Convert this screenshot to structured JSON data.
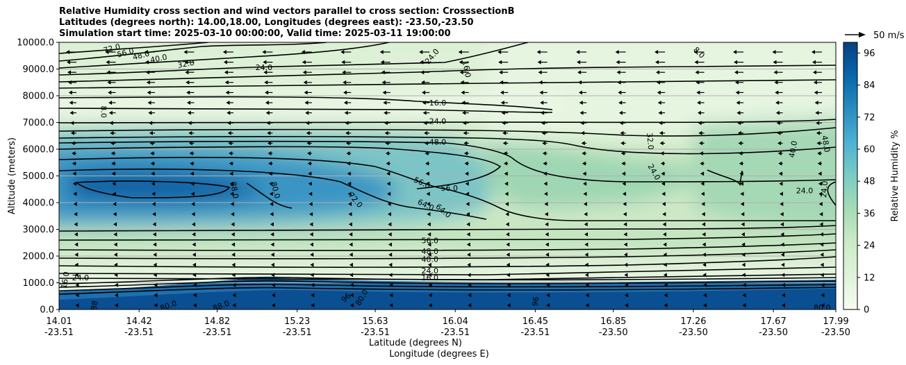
{
  "chart_data": {
    "type": "heatmap",
    "title_lines": [
      "Relative Humidity cross section and wind vectors parallel to cross section: CrosssectionB",
      "Latitudes (degrees north): 14.00,18.00, Longitudes (degrees east): -23.50,-23.50",
      "Simulation start time: 2025-03-10 00:00:00, Valid time: 2025-03-11 19:00:00"
    ],
    "ylabel": "Altitude (meters)",
    "xlabel_lat": "Latitude (degrees N)",
    "xlabel_lon": "Longitude (degrees E)",
    "ylim": [
      0,
      10000
    ],
    "yticks": [
      "0.0",
      "1000.0",
      "2000.0",
      "3000.0",
      "4000.0",
      "5000.0",
      "6000.0",
      "7000.0",
      "8000.0",
      "9000.0",
      "10000.0"
    ],
    "xticks_lat": [
      "14.01",
      "14.42",
      "14.82",
      "15.23",
      "15.63",
      "16.04",
      "16.45",
      "16.85",
      "17.26",
      "17.67",
      "17.99"
    ],
    "xticks_lon": [
      "-23.51",
      "-23.51",
      "-23.51",
      "-23.51",
      "-23.51",
      "-23.51",
      "-23.51",
      "-23.50",
      "-23.50",
      "-23.50",
      "-23.50"
    ],
    "xtick_positions": [
      14.01,
      14.42,
      14.82,
      15.23,
      15.63,
      16.04,
      16.45,
      16.85,
      17.26,
      17.67,
      17.99
    ],
    "xlim": [
      14.01,
      17.99
    ],
    "colorbar": {
      "label": "Relative Humidity %",
      "ticks": [
        "0",
        "12",
        "24",
        "36",
        "48",
        "60",
        "72",
        "84",
        "96"
      ],
      "range": [
        0,
        100
      ]
    },
    "quiver_key": "50 m/s",
    "grid": "horizontal",
    "contour_labels": [
      {
        "text": "72.0",
        "lat": 14.28,
        "z": 9780,
        "rot": -15
      },
      {
        "text": "56.0",
        "lat": 14.35,
        "z": 9620,
        "rot": -15
      },
      {
        "text": "48.0",
        "lat": 14.43,
        "z": 9520,
        "rot": -15
      },
      {
        "text": "40.0",
        "lat": 14.52,
        "z": 9400,
        "rot": -12
      },
      {
        "text": "32.0",
        "lat": 14.66,
        "z": 9200,
        "rot": -10
      },
      {
        "text": "24.0",
        "lat": 15.06,
        "z": 9060,
        "rot": 0
      },
      {
        "text": "24.0",
        "lat": 15.92,
        "z": 9480,
        "rot": -50
      },
      {
        "text": "16.0",
        "lat": 16.1,
        "z": 9000,
        "rot": 80
      },
      {
        "text": "8.0",
        "lat": 17.29,
        "z": 9620,
        "rot": 45
      },
      {
        "text": "8.0",
        "lat": 14.24,
        "z": 7400,
        "rot": 90
      },
      {
        "text": "16.0",
        "lat": 15.95,
        "z": 7740,
        "rot": 0
      },
      {
        "text": "24.0",
        "lat": 15.95,
        "z": 7050,
        "rot": 0
      },
      {
        "text": "48.0",
        "lat": 15.95,
        "z": 6270,
        "rot": 0
      },
      {
        "text": "32.0",
        "lat": 17.04,
        "z": 6300,
        "rot": 85
      },
      {
        "text": "40.0",
        "lat": 17.77,
        "z": 6000,
        "rot": -80
      },
      {
        "text": "48.0",
        "lat": 17.94,
        "z": 6200,
        "rot": 80
      },
      {
        "text": "24.0",
        "lat": 17.06,
        "z": 5150,
        "rot": 60
      },
      {
        "text": "24.0",
        "lat": 17.83,
        "z": 4460,
        "rot": 0
      },
      {
        "text": "24.0",
        "lat": 17.93,
        "z": 4500,
        "rot": -85
      },
      {
        "text": "88.0",
        "lat": 14.91,
        "z": 4470,
        "rot": 80
      },
      {
        "text": "80.0",
        "lat": 15.12,
        "z": 4470,
        "rot": 75
      },
      {
        "text": "72.0",
        "lat": 15.53,
        "z": 4100,
        "rot": 50
      },
      {
        "text": "56.0",
        "lat": 15.87,
        "z": 4750,
        "rot": 25
      },
      {
        "text": "56.0",
        "lat": 16.01,
        "z": 4550,
        "rot": 0
      },
      {
        "text": "64.0",
        "lat": 15.89,
        "z": 3920,
        "rot": 25
      },
      {
        "text": "64.0",
        "lat": 15.98,
        "z": 3700,
        "rot": 40
      },
      {
        "text": "56.0",
        "lat": 15.91,
        "z": 2580,
        "rot": 0
      },
      {
        "text": "48.0",
        "lat": 15.91,
        "z": 2180,
        "rot": 0
      },
      {
        "text": "40.0",
        "lat": 15.91,
        "z": 1880,
        "rot": 0
      },
      {
        "text": "24.0",
        "lat": 15.91,
        "z": 1450,
        "rot": 0
      },
      {
        "text": "16.0",
        "lat": 15.91,
        "z": 1200,
        "rot": 0
      },
      {
        "text": "24.0",
        "lat": 14.12,
        "z": 1200,
        "rot": 0
      },
      {
        "text": "16.0",
        "lat": 14.04,
        "z": 1100,
        "rot": -80
      },
      {
        "text": "80.0",
        "lat": 14.57,
        "z": 150,
        "rot": -20
      },
      {
        "text": "88.0",
        "lat": 14.84,
        "z": 150,
        "rot": -20
      },
      {
        "text": "96",
        "lat": 15.48,
        "z": 450,
        "rot": -45
      },
      {
        "text": "80.0",
        "lat": 15.56,
        "z": 450,
        "rot": -60
      },
      {
        "text": "96",
        "lat": 16.45,
        "z": 300,
        "rot": -80
      },
      {
        "text": "88",
        "lat": 14.19,
        "z": 150,
        "rot": -80
      },
      {
        "text": "80.0",
        "lat": 17.92,
        "z": 80,
        "rot": 0
      }
    ]
  },
  "colors": {
    "ramp": [
      "#f7fcf0",
      "#e0f3db",
      "#ccebc5",
      "#a8ddb5",
      "#7bccc4",
      "#4eb3d3",
      "#2b8cbe",
      "#0868ac",
      "#084081"
    ]
  }
}
